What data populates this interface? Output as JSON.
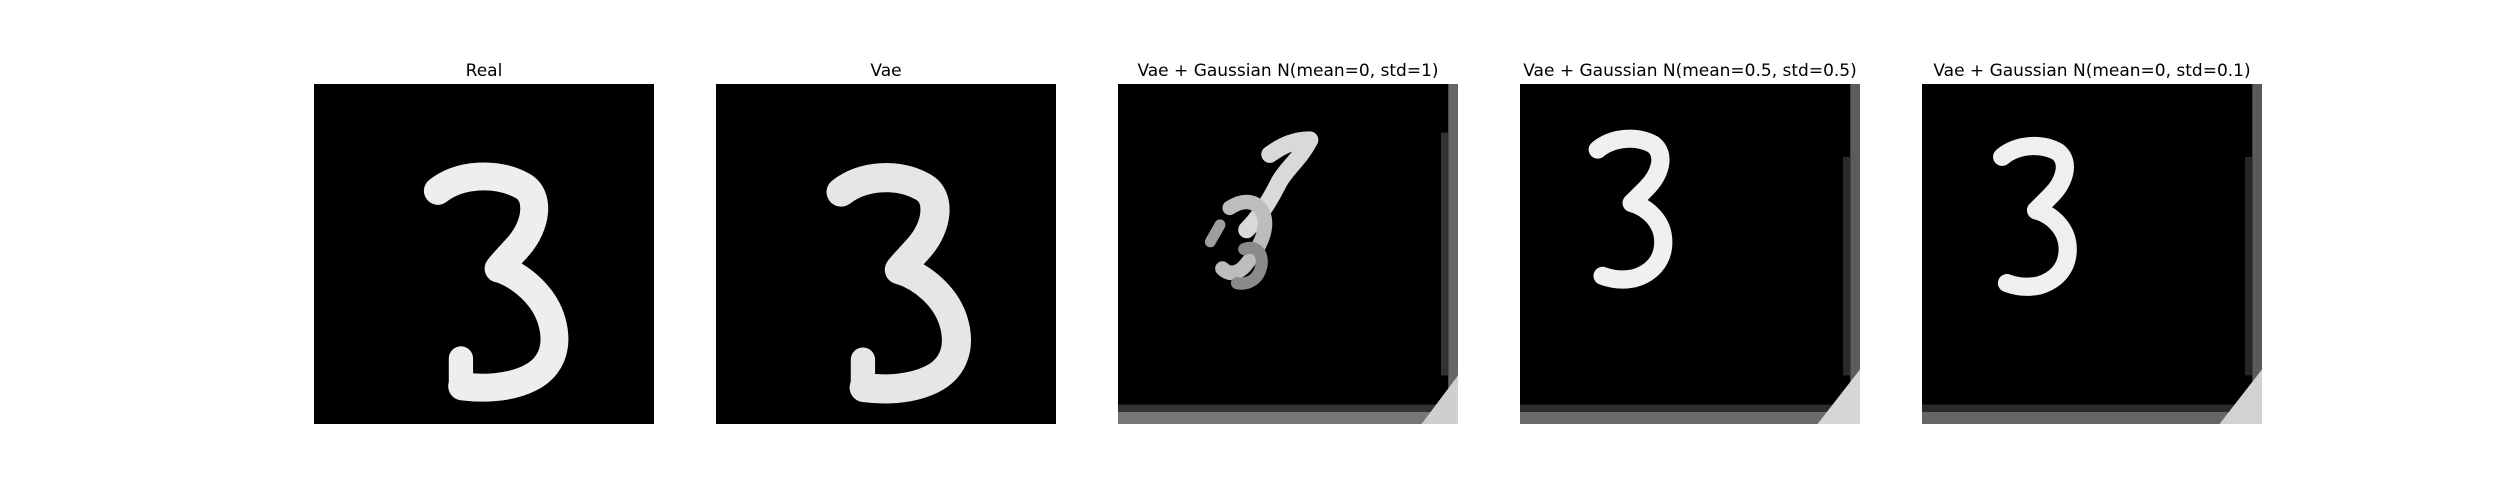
{
  "panels": [
    {
      "title": "Real",
      "icon": "digit-three-image"
    },
    {
      "title": "Vae",
      "icon": "digit-three-image"
    },
    {
      "title": "Vae + Gaussian N(mean=0, std=1)",
      "icon": "noisy-digit-image"
    },
    {
      "title": "Vae + Gaussian N(mean=0.5, std=0.5)",
      "icon": "digit-three-image"
    },
    {
      "title": "Vae + Gaussian N(mean=0, std=0.1)",
      "icon": "digit-three-image"
    }
  ],
  "colors": {
    "background": "#ffffff",
    "image_background": "#000000",
    "digit": "#f2f2f2",
    "title": "#000000"
  }
}
